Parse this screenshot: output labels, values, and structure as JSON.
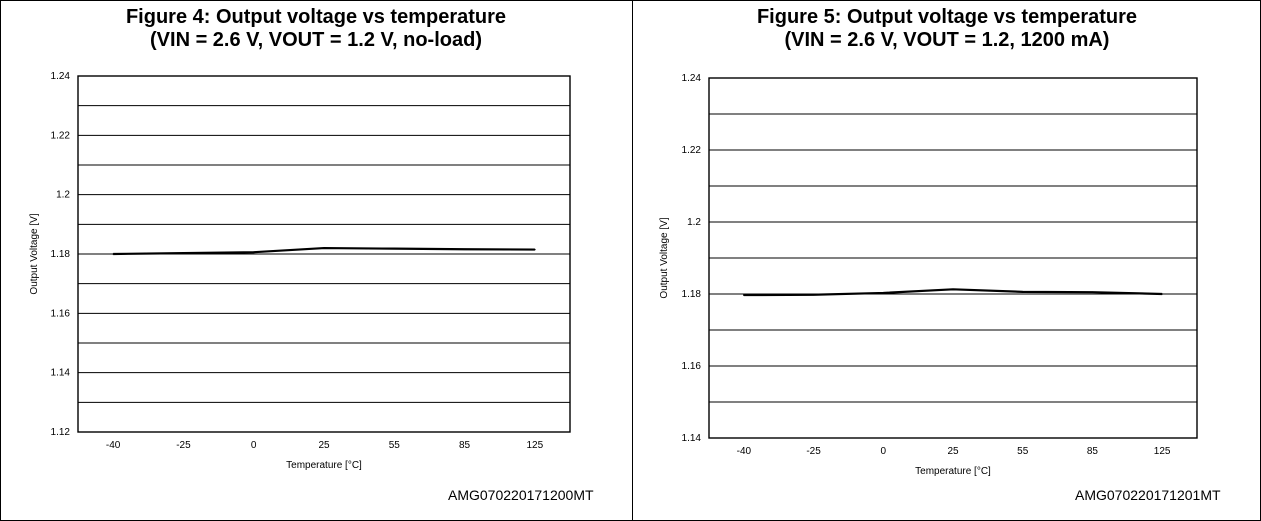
{
  "chart_data": [
    {
      "type": "line",
      "title": "Figure 4: Output voltage vs temperature",
      "subtitle": "(VIN = 2.6 V, VOUT = 1.2 V, no-load)",
      "xlabel": "Temperature  [°C]",
      "ylabel": "Output Voltage [V]",
      "categories": [
        "-40",
        "-25",
        "0",
        "25",
        "55",
        "85",
        "125"
      ],
      "y_ticks": [
        "1.12",
        "1.14",
        "1.16",
        "1.18",
        "1.2",
        "1.22",
        "1.24"
      ],
      "ylim": [
        1.12,
        1.24
      ],
      "grid": true,
      "series": [
        {
          "values": [
            1.18,
            1.1803,
            1.1806,
            1.182,
            1.1818,
            1.1816,
            1.1815
          ]
        }
      ],
      "reference": "AMG070220171200MT"
    },
    {
      "type": "line",
      "title": "Figure 5: Output voltage vs temperature",
      "subtitle": "(VIN = 2.6 V, VOUT = 1.2, 1200 mA)",
      "xlabel": "Temperature  [°C]",
      "ylabel": "Output Voltage [V]",
      "categories": [
        "-40",
        "-25",
        "0",
        "25",
        "55",
        "85",
        "125"
      ],
      "y_ticks": [
        "1.14",
        "1.16",
        "1.18",
        "1.2",
        "1.22",
        "1.24"
      ],
      "ylim": [
        1.14,
        1.24
      ],
      "grid": true,
      "series": [
        {
          "values": [
            1.1797,
            1.1798,
            1.1803,
            1.1813,
            1.1806,
            1.1805,
            1.18
          ]
        }
      ],
      "reference": "AMG070220171201MT"
    }
  ]
}
